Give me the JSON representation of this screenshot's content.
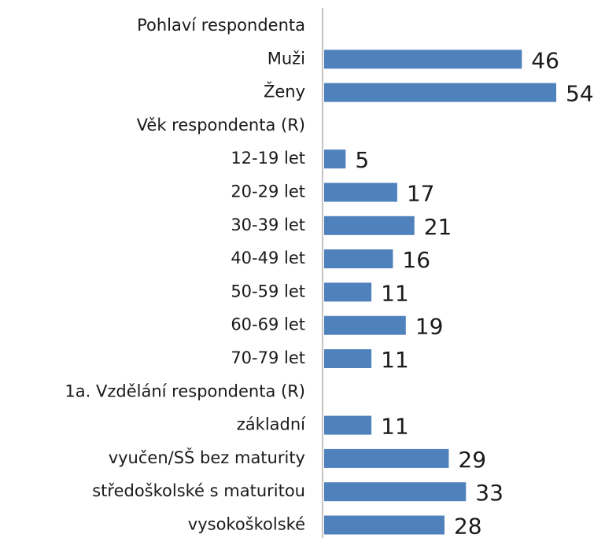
{
  "chart_data": {
    "type": "barh",
    "categories": [
      "Pohlaví respondenta",
      "Muži",
      "Ženy",
      "Věk respondenta (R)",
      "12-19 let",
      "20-29 let",
      "30-39 let",
      "40-49 let",
      "50-59 let",
      "60-69 let",
      "70-79 let",
      "1a. Vzdělání respondenta (R)",
      "základní",
      "vyučen/SŠ bez maturity",
      "středoškolské s maturitou",
      "vysokoškolské"
    ],
    "values": [
      null,
      46,
      54,
      null,
      5,
      17,
      21,
      16,
      11,
      19,
      11,
      null,
      11,
      29,
      33,
      28
    ],
    "color": "#4f81bd"
  }
}
